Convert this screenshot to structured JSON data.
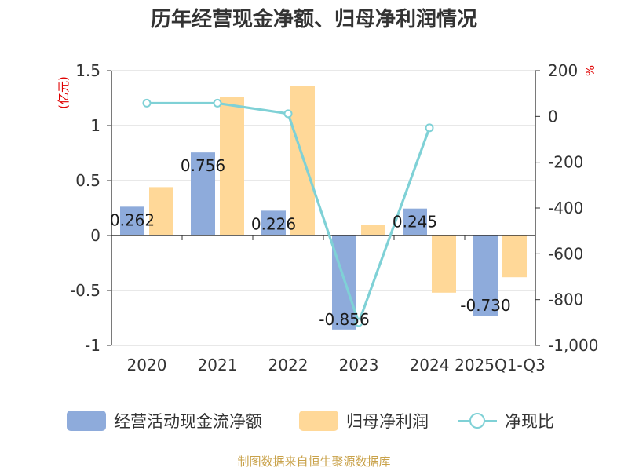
{
  "chart_data": {
    "type": "bar+line",
    "title": "历年经营现金净额、归母净利润情况",
    "categories": [
      "2020",
      "2021",
      "2022",
      "2023",
      "2024",
      "2025Q1-Q3"
    ],
    "series": [
      {
        "name": "经营活动现金流净额",
        "type": "bar",
        "axis": "left",
        "color": "#8eabdb",
        "values": [
          0.262,
          0.756,
          0.226,
          -0.856,
          0.245,
          -0.73
        ]
      },
      {
        "name": "归母净利润",
        "type": "bar",
        "axis": "left",
        "color": "#ffd898",
        "values": [
          0.44,
          1.26,
          1.36,
          0.1,
          -0.52,
          -0.38
        ]
      },
      {
        "name": "净现比",
        "type": "line",
        "axis": "right",
        "color": "#7fd1d6",
        "values": [
          58,
          58,
          12,
          -900,
          -50,
          null
        ]
      }
    ],
    "data_labels": [
      "0.262",
      "0.756",
      "0.226",
      "-0.856",
      "0.245",
      "-0.730"
    ],
    "left_axis": {
      "unit": "(亿元)",
      "min": -1,
      "max": 1.5,
      "ticks": [
        1.5,
        1,
        0.5,
        0,
        -0.5,
        -1
      ],
      "tick_labels": [
        "1.5",
        "1",
        "0.5",
        "0",
        "-0.5",
        "-1"
      ]
    },
    "right_axis": {
      "unit": "%",
      "min": -1000,
      "max": 200,
      "ticks": [
        200,
        0,
        -200,
        -400,
        -600,
        -800,
        -1000
      ],
      "tick_labels": [
        "200",
        "0",
        "-200",
        "-400",
        "-600",
        "-800",
        "-1,000"
      ]
    },
    "grid": true,
    "legend": [
      "经营活动现金流净额",
      "归母净利润",
      "净现比"
    ],
    "legend_position": "bottom"
  },
  "source": "制图数据来自恒生聚源数据库"
}
